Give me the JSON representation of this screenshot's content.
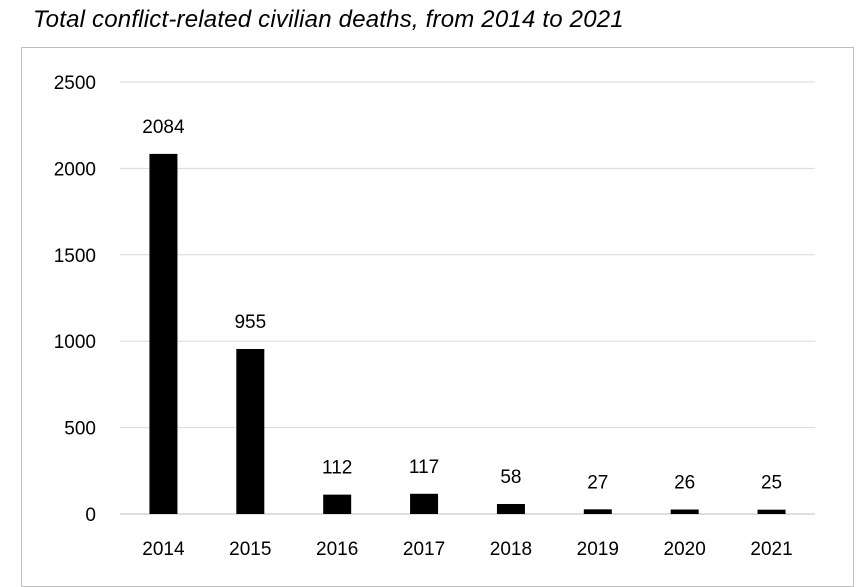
{
  "chart_data": {
    "type": "bar",
    "title": "Total conflict-related civilian deaths, from 2014 to 2021",
    "categories": [
      "2014",
      "2015",
      "2016",
      "2017",
      "2018",
      "2019",
      "2020",
      "2021"
    ],
    "values": [
      2084,
      955,
      112,
      117,
      58,
      27,
      26,
      25
    ],
    "data_labels": [
      "2084",
      "955",
      "112",
      "117",
      "58",
      "27",
      "26",
      "25"
    ],
    "yticks": [
      "0",
      "500",
      "1000",
      "1500",
      "2000",
      "2500"
    ],
    "ylim": [
      0,
      2500
    ],
    "grid": true,
    "legend": "none",
    "bar_color": "#000000",
    "grid_color": "#d9d9d9"
  }
}
